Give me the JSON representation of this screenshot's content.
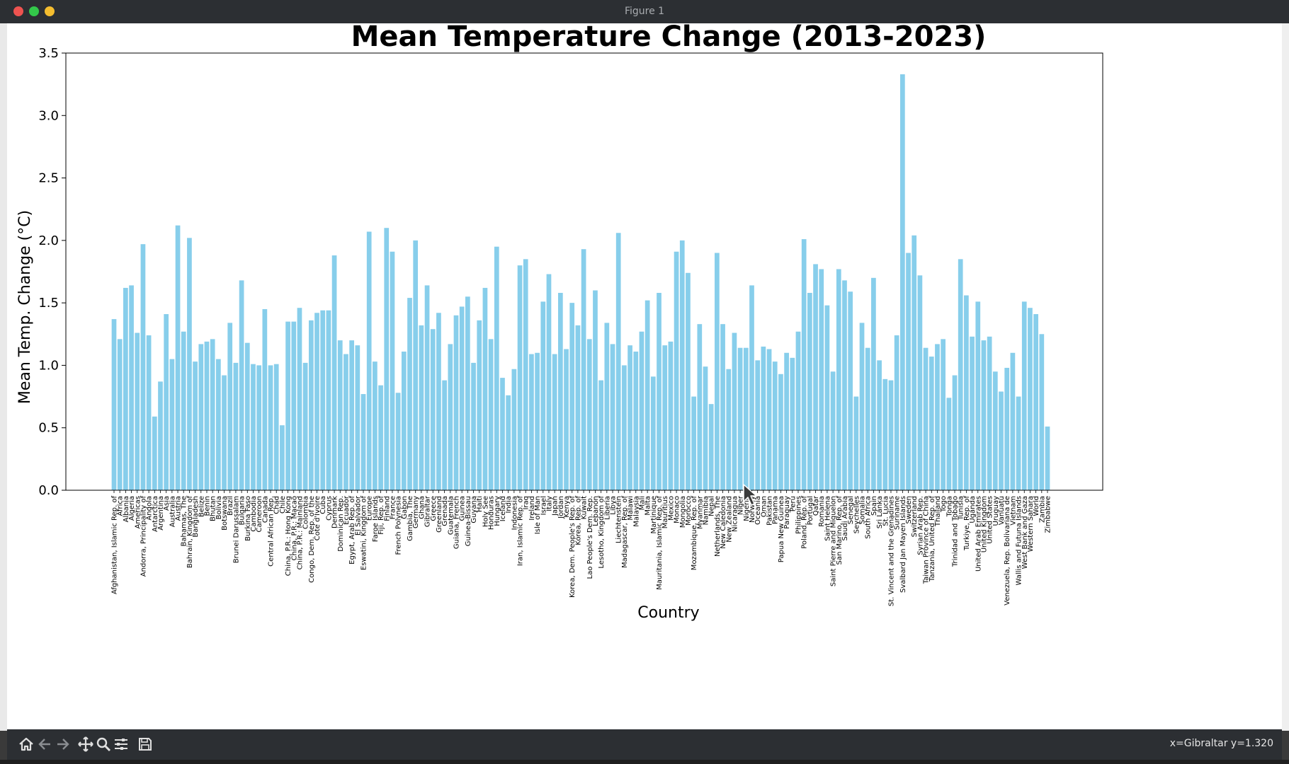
{
  "window": {
    "title": "Figure 1"
  },
  "status": {
    "coords": "x=Gibraltar y=1.320"
  },
  "colors": {
    "bar": "#87ceeb",
    "axis": "#000000",
    "window_bg": "#2c2f33"
  },
  "toolbar": {
    "icons": [
      "home-icon",
      "back-arrow-icon",
      "forward-arrow-icon",
      "pan-icon",
      "zoom-icon",
      "configure-subplots-icon",
      "save-icon"
    ]
  },
  "chart_data": {
    "type": "bar",
    "title": "Mean Temperature Change (2013-2023)",
    "xlabel": "Country",
    "ylabel": "Mean Temp. Change (°C)",
    "ylim": [
      0,
      3.5
    ],
    "yticks": [
      "0.0",
      "0.5",
      "1.0",
      "1.5",
      "2.0",
      "2.5",
      "3.0",
      "3.5"
    ],
    "grid": false,
    "categories": [
      "Afghanistan, Islamic Rep. of",
      "Africa",
      "Albania",
      "Algeria",
      "Americas",
      "Andorra, Principality of",
      "Angola",
      "Antarctica",
      "Argentina",
      "Asia",
      "Australia",
      "Austria",
      "Bahamas, The",
      "Bahrain, Kingdom of",
      "Bangladesh",
      "Belize",
      "Benin",
      "Bhutan",
      "Bolivia",
      "Botswana",
      "Brazil",
      "Brunei Darussalam",
      "Bulgaria",
      "Burkina Faso",
      "Cambodia",
      "Cameroon",
      "Canada",
      "Central African Rep.",
      "Chad",
      "Chile",
      "China, P.R.: Hong Kong",
      "China, P.R.: Macao",
      "China, P.R.: Mainland",
      "Colombia",
      "Congo, Dem. Rep. of the",
      "Cote d'Ivoire",
      "Cuba",
      "Cyprus",
      "Denmark",
      "Dominican Rep.",
      "Ecuador",
      "Egypt, Arab Rep. of",
      "El Salvador",
      "Eswatini, Kingdom of",
      "Europe",
      "Faroe Islands",
      "Fiji, Rep. of",
      "Finland",
      "France",
      "French Polynesia",
      "Gabon",
      "Gambia, The",
      "Germany",
      "Ghana",
      "Gibraltar",
      "Greece",
      "Greenland",
      "Grenada",
      "Guatemala",
      "Guiana, French",
      "Guinea",
      "Guinea-Bissau",
      "Guyana",
      "Haiti",
      "Holy See",
      "Honduras",
      "Hungary",
      "Iceland",
      "India",
      "Indonesia",
      "Iran, Islamic Rep. of",
      "Iraq",
      "Ireland",
      "Isle of Man",
      "Israel",
      "Italy",
      "Japan",
      "Jordan",
      "Kenya",
      "Korea, Dem. People's Rep. of",
      "Korea, Rep. of",
      "Kuwait",
      "Lao People's Dem. Rep.",
      "Lebanon",
      "Lesotho, Kingdom of",
      "Liberia",
      "Libya",
      "Liechtenstein",
      "Madagascar, Rep. of",
      "Malawi",
      "Malaysia",
      "Mali",
      "Malta",
      "Martinique",
      "Mauritania, Islamic Rep. of",
      "Mauritius",
      "Mexico",
      "Monaco",
      "Mongolia",
      "Morocco",
      "Mozambique, Rep. of",
      "Myanmar",
      "Namibia",
      "Nepal",
      "Netherlands, The",
      "New Caledonia",
      "New Zealand",
      "Nicaragua",
      "Niger",
      "Nigeria",
      "Norway",
      "Oceania",
      "Oman",
      "Pakistan",
      "Panama",
      "Papua New Guinea",
      "Paraguay",
      "Peru",
      "Philippines",
      "Poland, Rep. of",
      "Portugal",
      "Qatar",
      "Romania",
      "Saint Helena",
      "Saint Pierre and Miquelon",
      "San Marino, Rep. of",
      "Saudi Arabia",
      "Senegal",
      "Seychelles",
      "Somalia",
      "South Africa",
      "Spain",
      "Sri Lanka",
      "St. Lucia",
      "St. Vincent and the Grenadines",
      "Suriname",
      "Svalbard Jan Mayen Islands",
      "Sweden",
      "Switzerland",
      "Syrian Arab Rep.",
      "Taiwan Province of China",
      "Tanzania, United Rep. of",
      "Thailand",
      "Togo",
      "Tonga",
      "Trinidad and Tobago",
      "Tunisia",
      "Turkiye, Rep. of",
      "Uganda",
      "United Arab Emirates",
      "United Kingdom",
      "United States",
      "Uruguay",
      "Vanuatu",
      "Venezuela, Rep. Bolivariana de",
      "Vietnam",
      "Wallis and Futuna Islands",
      "West Bank and Gaza",
      "Western Sahara",
      "World",
      "Zambia",
      "Zimbabwe"
    ],
    "values": [
      1.37,
      1.21,
      1.62,
      1.64,
      1.26,
      1.97,
      1.24,
      0.59,
      0.87,
      1.41,
      1.05,
      2.12,
      1.27,
      2.02,
      1.03,
      1.17,
      1.19,
      1.21,
      1.05,
      0.92,
      1.34,
      1.02,
      1.68,
      1.18,
      1.01,
      1.0,
      1.45,
      1.0,
      1.01,
      0.52,
      1.35,
      1.35,
      1.46,
      1.02,
      1.36,
      1.42,
      1.44,
      1.44,
      1.88,
      1.2,
      1.09,
      1.2,
      1.16,
      0.77,
      2.07,
      1.03,
      0.84,
      2.1,
      1.91,
      0.78,
      1.11,
      1.54,
      2.0,
      1.32,
      1.64,
      1.29,
      1.42,
      0.88,
      1.17,
      1.4,
      1.47,
      1.55,
      1.02,
      1.36,
      1.62,
      1.21,
      1.95,
      0.9,
      0.76,
      0.97,
      1.8,
      1.85,
      1.09,
      1.1,
      1.51,
      1.73,
      1.09,
      1.58,
      1.13,
      1.5,
      1.32,
      1.93,
      1.21,
      1.6,
      0.88,
      1.34,
      1.17,
      2.06,
      1.0,
      1.16,
      1.11,
      1.27,
      1.52,
      0.91,
      1.58,
      1.16,
      1.19,
      1.91,
      2.0,
      1.74,
      0.75,
      1.33,
      0.99,
      0.69,
      1.9,
      1.33,
      0.97,
      1.26,
      1.14,
      1.14,
      1.64,
      1.04,
      1.15,
      1.13,
      1.03,
      0.93,
      1.1,
      1.06,
      1.27,
      2.01,
      1.58,
      1.81,
      1.77,
      1.48,
      0.95,
      1.77,
      1.68,
      1.59,
      0.75,
      1.34,
      1.14,
      1.7,
      1.04,
      0.89,
      0.88,
      1.24,
      3.33,
      1.9,
      2.04,
      1.72,
      1.14,
      1.07,
      1.17,
      1.21,
      0.74,
      0.92,
      1.85,
      1.56,
      1.23,
      1.51,
      1.2,
      1.23,
      0.95,
      0.79,
      0.98,
      1.1,
      0.75,
      1.51,
      1.46,
      1.41,
      1.25,
      0.51
    ]
  }
}
